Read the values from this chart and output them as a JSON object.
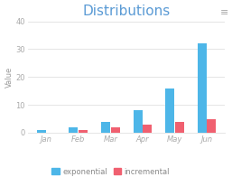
{
  "title": "Distributions",
  "title_color": "#5b9bd5",
  "categories": [
    "Jan",
    "Feb",
    "Mar",
    "Apr",
    "May",
    "Jun"
  ],
  "series": [
    {
      "name": "exponential",
      "color": "#4db6e8",
      "values": [
        1,
        2,
        4,
        8,
        16,
        32
      ]
    },
    {
      "name": "incremental",
      "color": "#f06070",
      "values": [
        0,
        1,
        2,
        3,
        4,
        5
      ]
    }
  ],
  "ylim": [
    0,
    40
  ],
  "yticks": [
    0,
    10,
    20,
    30,
    40
  ],
  "ylabel": "Value",
  "ylabel_color": "#999999",
  "tick_label_color": "#aaaaaa",
  "grid_color": "#e0e0e0",
  "background_color": "#ffffff",
  "bar_width": 0.28,
  "title_fontsize": 11,
  "axis_fontsize": 6,
  "ylabel_fontsize": 6,
  "legend_fontsize": 6
}
